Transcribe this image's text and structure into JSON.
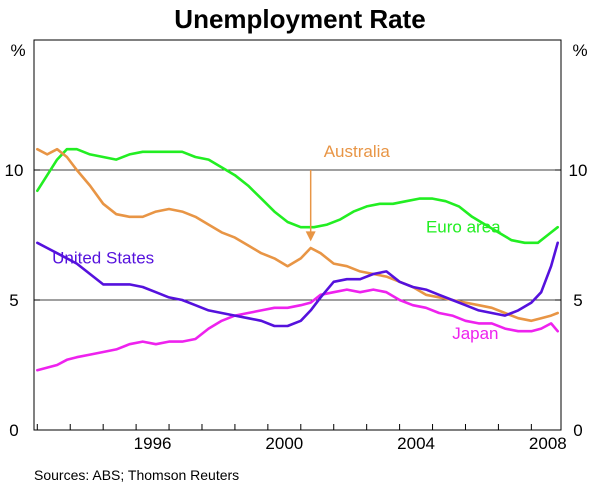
{
  "chart_data": {
    "type": "line",
    "title": "Unemployment Rate",
    "source": "Sources: ABS; Thomson Reuters",
    "y_unit_left": "%",
    "y_unit_right": "%",
    "xlim": [
      1992.9,
      2008.9
    ],
    "ylim": [
      0,
      15
    ],
    "x_ticks": [
      1996,
      2000,
      2004,
      2008
    ],
    "x_tick_labels": [
      "1996",
      "2000",
      "2004",
      "2008"
    ],
    "y_ticks": [
      0,
      5,
      10
    ],
    "y_tick_labels": [
      "0",
      "5",
      "10"
    ],
    "gridlines_y": [
      5,
      10
    ],
    "series": [
      {
        "name": "Euro area",
        "label": "Euro area",
        "color": "#22ee22",
        "x": [
          1993.0,
          1993.3,
          1993.6,
          1993.9,
          1994.2,
          1994.6,
          1995.0,
          1995.4,
          1995.8,
          1996.2,
          1996.6,
          1997.0,
          1997.4,
          1997.8,
          1998.2,
          1998.6,
          1999.0,
          1999.4,
          1999.8,
          2000.2,
          2000.6,
          2001.0,
          2001.4,
          2001.8,
          2002.2,
          2002.6,
          2003.0,
          2003.4,
          2003.8,
          2004.2,
          2004.6,
          2005.0,
          2005.4,
          2005.8,
          2006.2,
          2006.6,
          2007.0,
          2007.4,
          2007.8,
          2008.2,
          2008.5,
          2008.8
        ],
        "values": [
          9.2,
          9.8,
          10.4,
          10.8,
          10.8,
          10.6,
          10.5,
          10.4,
          10.6,
          10.7,
          10.7,
          10.7,
          10.7,
          10.5,
          10.4,
          10.1,
          9.8,
          9.4,
          8.9,
          8.4,
          8.0,
          7.8,
          7.8,
          7.9,
          8.1,
          8.4,
          8.6,
          8.7,
          8.7,
          8.8,
          8.9,
          8.9,
          8.8,
          8.6,
          8.2,
          7.9,
          7.6,
          7.3,
          7.2,
          7.2,
          7.5,
          7.8
        ]
      },
      {
        "name": "Australia",
        "label": "Australia",
        "color": "#e89545",
        "x": [
          1993.0,
          1993.3,
          1993.6,
          1993.9,
          1994.2,
          1994.6,
          1995.0,
          1995.4,
          1995.8,
          1996.2,
          1996.6,
          1997.0,
          1997.4,
          1997.8,
          1998.2,
          1998.6,
          1999.0,
          1999.4,
          1999.8,
          2000.2,
          2000.6,
          2001.0,
          2001.3,
          2001.6,
          2002.0,
          2002.4,
          2002.8,
          2003.2,
          2003.6,
          2004.0,
          2004.4,
          2004.8,
          2005.2,
          2005.6,
          2006.0,
          2006.4,
          2006.8,
          2007.2,
          2007.6,
          2008.0,
          2008.3,
          2008.6,
          2008.8
        ],
        "values": [
          10.8,
          10.6,
          10.8,
          10.5,
          10.0,
          9.4,
          8.7,
          8.3,
          8.2,
          8.2,
          8.4,
          8.5,
          8.4,
          8.2,
          7.9,
          7.6,
          7.4,
          7.1,
          6.8,
          6.6,
          6.3,
          6.6,
          7.0,
          6.8,
          6.4,
          6.3,
          6.1,
          6.0,
          5.9,
          5.7,
          5.5,
          5.2,
          5.1,
          5.0,
          4.9,
          4.8,
          4.7,
          4.5,
          4.3,
          4.2,
          4.3,
          4.4,
          4.5
        ]
      },
      {
        "name": "United States",
        "label": "United States",
        "color": "#5511dd",
        "x": [
          1993.0,
          1993.3,
          1993.6,
          1993.9,
          1994.2,
          1994.6,
          1995.0,
          1995.4,
          1995.8,
          1996.2,
          1996.6,
          1997.0,
          1997.4,
          1997.8,
          1998.2,
          1998.6,
          1999.0,
          1999.4,
          1999.8,
          2000.2,
          2000.6,
          2001.0,
          2001.3,
          2001.6,
          2002.0,
          2002.4,
          2002.8,
          2003.2,
          2003.6,
          2004.0,
          2004.4,
          2004.8,
          2005.2,
          2005.6,
          2006.0,
          2006.4,
          2006.8,
          2007.2,
          2007.6,
          2008.0,
          2008.3,
          2008.6,
          2008.8
        ],
        "values": [
          7.2,
          7.0,
          6.8,
          6.6,
          6.4,
          6.0,
          5.6,
          5.6,
          5.6,
          5.5,
          5.3,
          5.1,
          5.0,
          4.8,
          4.6,
          4.5,
          4.4,
          4.3,
          4.2,
          4.0,
          4.0,
          4.2,
          4.6,
          5.1,
          5.7,
          5.8,
          5.8,
          6.0,
          6.1,
          5.7,
          5.5,
          5.4,
          5.2,
          5.0,
          4.8,
          4.6,
          4.5,
          4.4,
          4.6,
          4.9,
          5.3,
          6.3,
          7.2
        ]
      },
      {
        "name": "Japan",
        "label": "Japan",
        "color": "#ee22ee",
        "x": [
          1993.0,
          1993.3,
          1993.6,
          1993.9,
          1994.2,
          1994.6,
          1995.0,
          1995.4,
          1995.8,
          1996.2,
          1996.6,
          1997.0,
          1997.4,
          1997.8,
          1998.2,
          1998.6,
          1999.0,
          1999.4,
          1999.8,
          2000.2,
          2000.6,
          2001.0,
          2001.3,
          2001.6,
          2002.0,
          2002.4,
          2002.8,
          2003.2,
          2003.6,
          2004.0,
          2004.4,
          2004.8,
          2005.2,
          2005.6,
          2006.0,
          2006.4,
          2006.8,
          2007.2,
          2007.6,
          2008.0,
          2008.3,
          2008.6,
          2008.8
        ],
        "values": [
          2.3,
          2.4,
          2.5,
          2.7,
          2.8,
          2.9,
          3.0,
          3.1,
          3.3,
          3.4,
          3.3,
          3.4,
          3.4,
          3.5,
          3.9,
          4.2,
          4.4,
          4.5,
          4.6,
          4.7,
          4.7,
          4.8,
          4.9,
          5.2,
          5.3,
          5.4,
          5.3,
          5.4,
          5.3,
          5.0,
          4.8,
          4.7,
          4.5,
          4.4,
          4.2,
          4.1,
          4.1,
          3.9,
          3.8,
          3.8,
          3.9,
          4.1,
          3.8
        ]
      }
    ],
    "annotations": [
      {
        "text": "Australia",
        "series": "Australia",
        "arrow_to_x": 2001.3,
        "arrow_to_y": 7.1
      }
    ]
  }
}
